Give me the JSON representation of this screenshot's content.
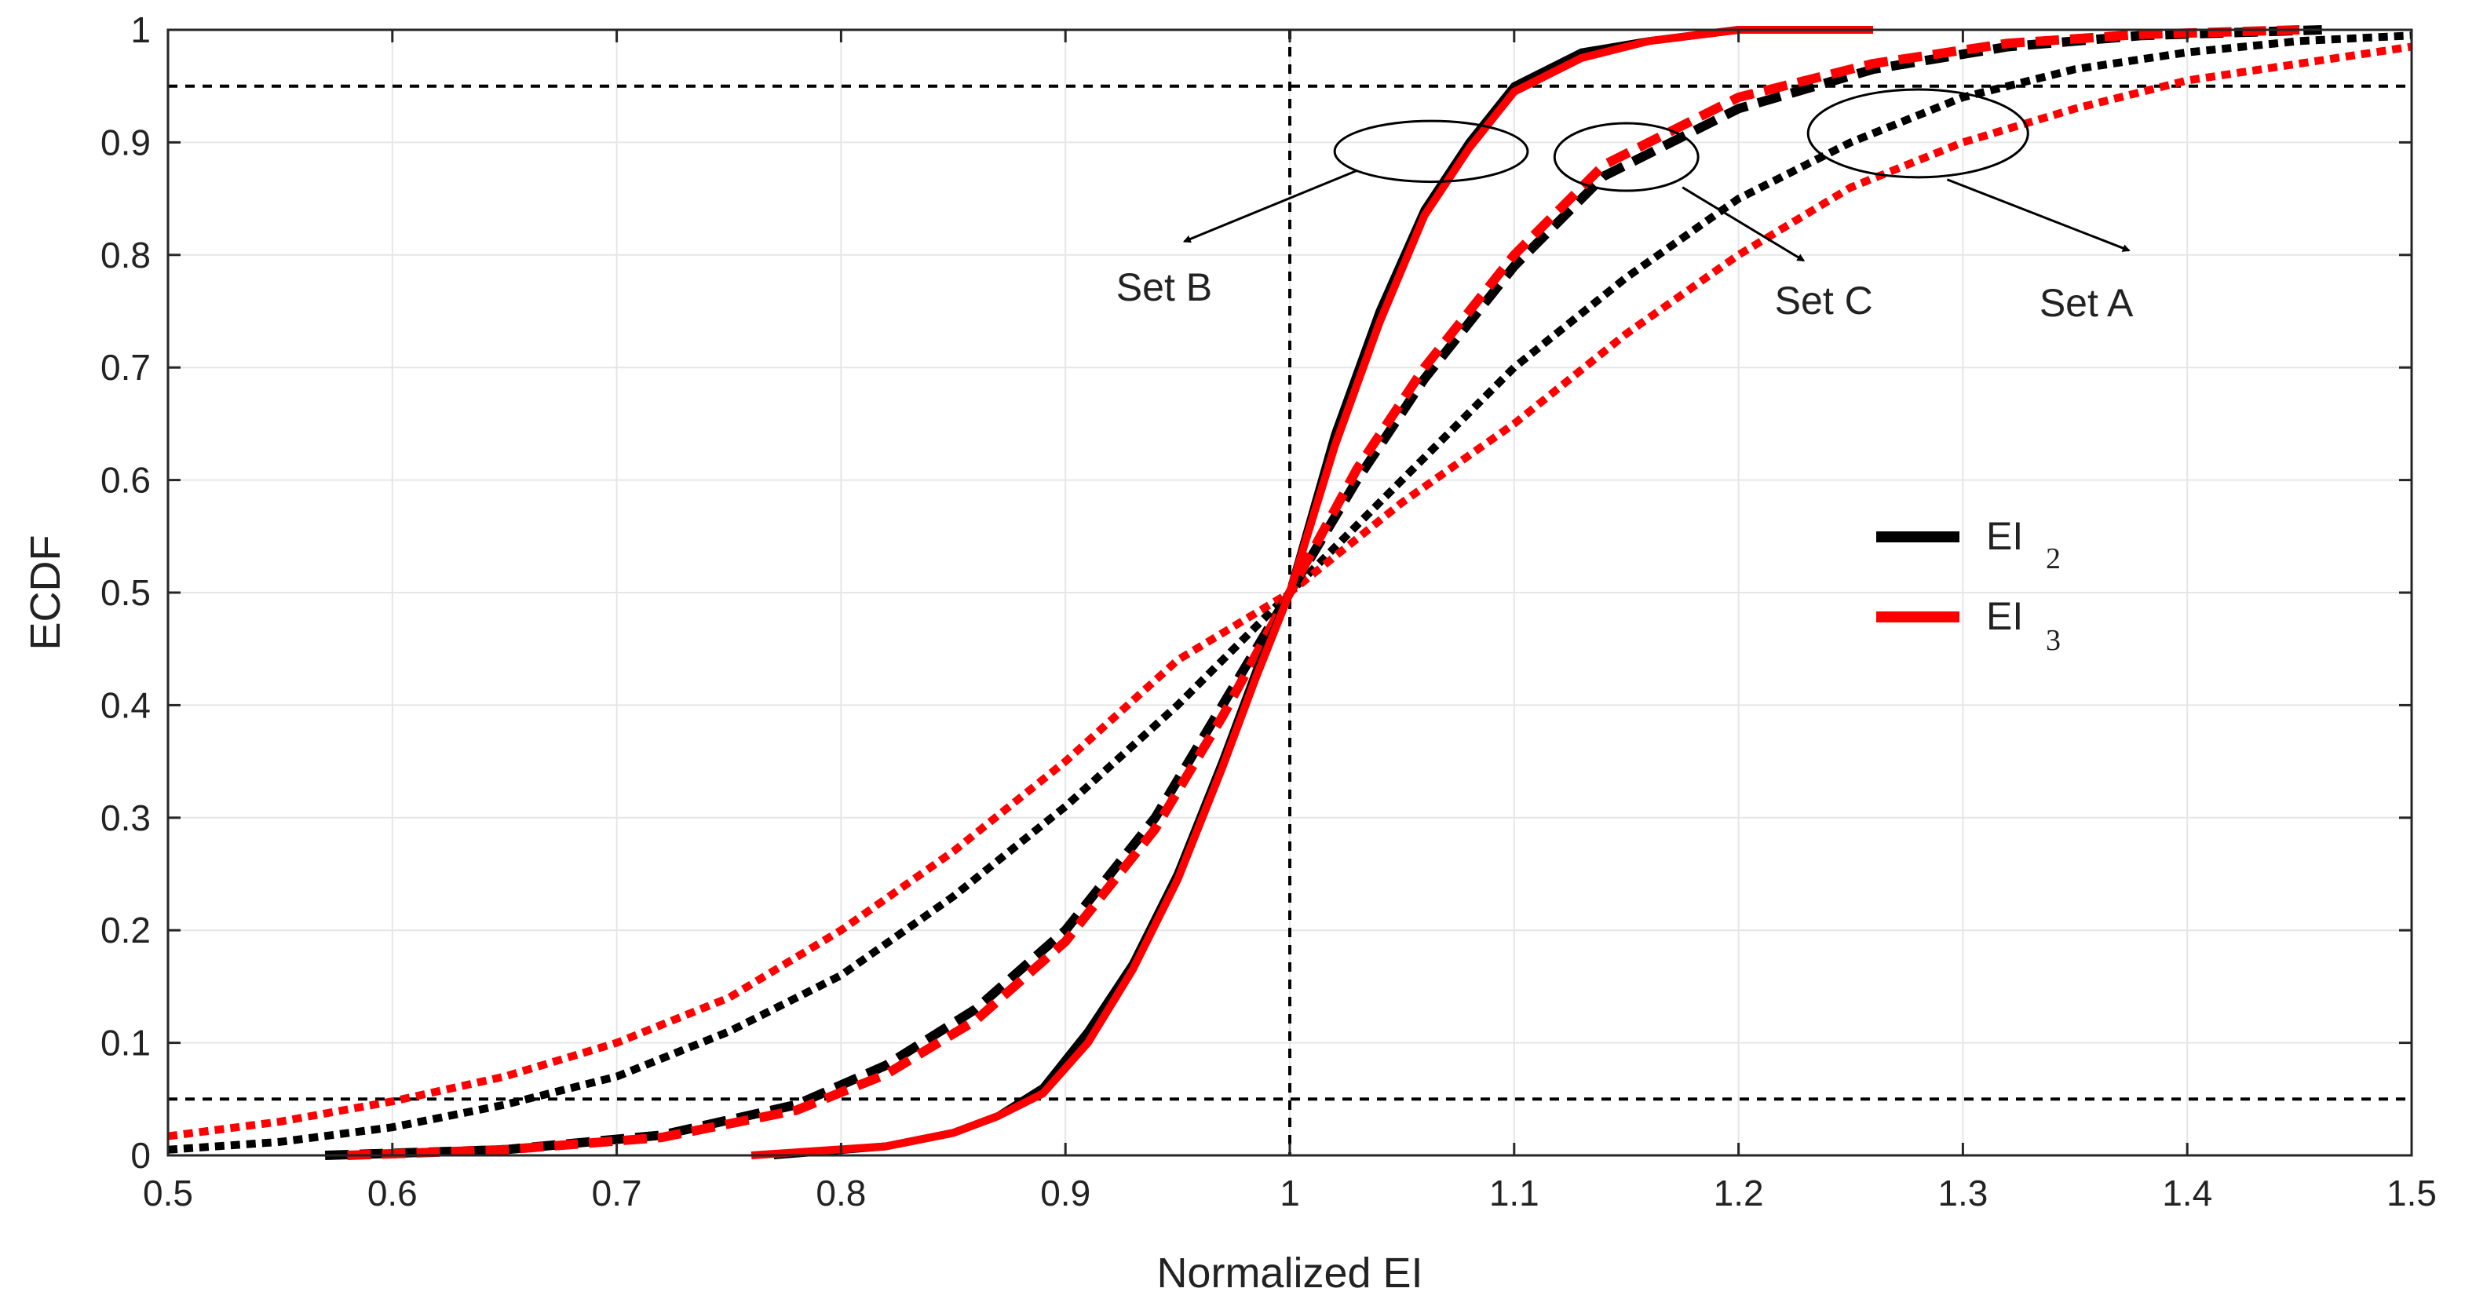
{
  "chart_data": {
    "type": "line",
    "title": "",
    "xlabel": "Normalized EI",
    "ylabel": "ECDF",
    "xlim": [
      0.5,
      1.5
    ],
    "ylim": [
      0,
      1
    ],
    "grid": true,
    "x_ticks": [
      0.5,
      0.6,
      0.7,
      0.8,
      0.9,
      1,
      1.1,
      1.2,
      1.3,
      1.4,
      1.5
    ],
    "y_ticks": [
      0,
      0.1,
      0.2,
      0.3,
      0.4,
      0.5,
      0.6,
      0.7,
      0.8,
      0.9,
      1
    ],
    "x_tick_labels": [
      "0.5",
      "0.6",
      "0.7",
      "0.8",
      "0.9",
      "1",
      "1.1",
      "1.2",
      "1.3",
      "1.4",
      "1.5"
    ],
    "y_tick_labels": [
      "0",
      "0.1",
      "0.2",
      "0.3",
      "0.4",
      "0.5",
      "0.6",
      "0.7",
      "0.8",
      "0.9",
      "1"
    ],
    "reference_lines": [
      {
        "orientation": "horizontal",
        "value": 0.95,
        "style": "dashed",
        "color": "#000000"
      },
      {
        "orientation": "horizontal",
        "value": 0.05,
        "style": "dashed",
        "color": "#000000"
      },
      {
        "orientation": "vertical",
        "value": 1.0,
        "style": "dashed",
        "color": "#000000"
      }
    ],
    "legend": {
      "position": "center-right",
      "entries": [
        {
          "label": "EI",
          "subscript": "2",
          "color": "#000000"
        },
        {
          "label": "EI",
          "subscript": "3",
          "color": "#ff0000"
        }
      ]
    },
    "annotations": [
      {
        "text": "Set B",
        "ellipse_center": [
          1.063,
          0.892
        ],
        "ellipse_radii": [
          0.043,
          0.027
        ],
        "arrow_from": [
          1.03,
          0.875
        ],
        "arrow_to": [
          0.953,
          0.812
        ],
        "label_at": [
          0.944,
          0.772
        ]
      },
      {
        "text": "Set C",
        "ellipse_center": [
          1.15,
          0.887
        ],
        "ellipse_radii": [
          0.032,
          0.03
        ],
        "arrow_from": [
          1.175,
          0.86
        ],
        "arrow_to": [
          1.229,
          0.795
        ],
        "label_at": [
          1.238,
          0.76
        ]
      },
      {
        "text": "Set A",
        "ellipse_center": [
          1.28,
          0.908
        ],
        "ellipse_radii": [
          0.049,
          0.039
        ],
        "arrow_from": [
          1.293,
          0.867
        ],
        "arrow_to": [
          1.374,
          0.804
        ],
        "label_at": [
          1.355,
          0.758
        ]
      }
    ],
    "series": [
      {
        "name": "Set B - EI 2",
        "group": "Set B",
        "metric": "EI 2",
        "color": "#000000",
        "style": "solid",
        "x": [
          0.77,
          0.82,
          0.85,
          0.87,
          0.89,
          0.91,
          0.93,
          0.95,
          0.97,
          0.985,
          1.0,
          1.02,
          1.04,
          1.06,
          1.08,
          1.1,
          1.13,
          1.16,
          1.2,
          1.25
        ],
        "y": [
          0.0,
          0.008,
          0.02,
          0.035,
          0.06,
          0.11,
          0.17,
          0.25,
          0.35,
          0.43,
          0.5,
          0.64,
          0.75,
          0.84,
          0.9,
          0.95,
          0.98,
          0.99,
          1.0,
          1.0
        ]
      },
      {
        "name": "Set B - EI 3",
        "group": "Set B",
        "metric": "EI 3",
        "color": "#ff0000",
        "style": "solid",
        "x": [
          0.76,
          0.82,
          0.85,
          0.87,
          0.89,
          0.91,
          0.93,
          0.95,
          0.97,
          0.985,
          1.0,
          1.02,
          1.04,
          1.06,
          1.08,
          1.1,
          1.13,
          1.16,
          1.2,
          1.26
        ],
        "y": [
          0.0,
          0.008,
          0.02,
          0.035,
          0.055,
          0.1,
          0.165,
          0.245,
          0.345,
          0.425,
          0.5,
          0.63,
          0.74,
          0.835,
          0.895,
          0.945,
          0.975,
          0.99,
          1.0,
          1.0
        ]
      },
      {
        "name": "Set C - EI 2",
        "group": "Set C",
        "metric": "EI 2",
        "color": "#000000",
        "style": "dashed",
        "x": [
          0.57,
          0.65,
          0.72,
          0.78,
          0.82,
          0.86,
          0.9,
          0.94,
          0.97,
          1.0,
          1.03,
          1.06,
          1.1,
          1.14,
          1.2,
          1.26,
          1.32,
          1.38,
          1.46
        ],
        "y": [
          0.0,
          0.005,
          0.018,
          0.045,
          0.08,
          0.13,
          0.2,
          0.3,
          0.4,
          0.5,
          0.6,
          0.69,
          0.79,
          0.87,
          0.93,
          0.965,
          0.985,
          0.995,
          1.0
        ]
      },
      {
        "name": "Set C - EI 3",
        "group": "Set C",
        "metric": "EI 3",
        "color": "#ff0000",
        "style": "dashed",
        "x": [
          0.58,
          0.65,
          0.72,
          0.78,
          0.82,
          0.86,
          0.9,
          0.94,
          0.97,
          1.0,
          1.03,
          1.06,
          1.1,
          1.14,
          1.2,
          1.26,
          1.32,
          1.38,
          1.45
        ],
        "y": [
          0.0,
          0.005,
          0.016,
          0.04,
          0.072,
          0.12,
          0.19,
          0.29,
          0.39,
          0.5,
          0.61,
          0.7,
          0.8,
          0.88,
          0.94,
          0.97,
          0.988,
          0.996,
          1.0
        ]
      },
      {
        "name": "Set A - EI 2",
        "group": "Set A",
        "metric": "EI 2",
        "color": "#000000",
        "style": "dotted",
        "x": [
          0.5,
          0.55,
          0.6,
          0.65,
          0.7,
          0.75,
          0.8,
          0.85,
          0.9,
          0.95,
          1.0,
          1.05,
          1.1,
          1.15,
          1.2,
          1.25,
          1.3,
          1.35,
          1.4,
          1.45,
          1.5
        ],
        "y": [
          0.005,
          0.012,
          0.025,
          0.045,
          0.07,
          0.11,
          0.16,
          0.23,
          0.31,
          0.4,
          0.5,
          0.6,
          0.7,
          0.78,
          0.85,
          0.9,
          0.94,
          0.965,
          0.98,
          0.99,
          0.995
        ]
      },
      {
        "name": "Set A - EI 3",
        "group": "Set A",
        "metric": "EI 3",
        "color": "#ff0000",
        "style": "dotted",
        "x": [
          0.5,
          0.55,
          0.6,
          0.65,
          0.7,
          0.75,
          0.8,
          0.85,
          0.9,
          0.95,
          1.0,
          1.05,
          1.1,
          1.15,
          1.2,
          1.25,
          1.3,
          1.35,
          1.4,
          1.45,
          1.5
        ],
        "y": [
          0.017,
          0.03,
          0.048,
          0.07,
          0.1,
          0.14,
          0.2,
          0.27,
          0.35,
          0.44,
          0.5,
          0.58,
          0.65,
          0.73,
          0.8,
          0.86,
          0.9,
          0.93,
          0.955,
          0.97,
          0.985
        ]
      }
    ]
  }
}
